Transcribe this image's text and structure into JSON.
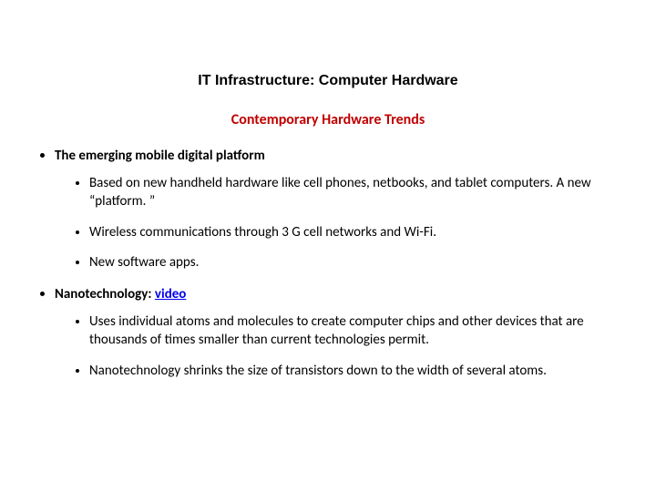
{
  "title": {
    "text": "IT Infrastructure: Computer Hardware",
    "color": "#000000",
    "fontsize": 16
  },
  "subtitle": {
    "text": "Contemporary Hardware Trends",
    "color": "#c00000",
    "fontsize": 16
  },
  "bullets": [
    {
      "heading": "The emerging mobile digital platform",
      "sub": [
        "Based on new handheld hardware like cell phones, netbooks, and tablet computers. A new “platform. ”",
        "Wireless communications through 3 G cell networks and Wi-Fi.",
        "New software apps."
      ]
    },
    {
      "heading_prefix": "Nanotechnology: ",
      "heading_link": "video",
      "sub": [
        "Uses individual atoms and molecules to create computer chips and other devices that are thousands of times smaller than current technologies permit.",
        "Nanotechnology shrinks the size of transistors down to the width of several atoms."
      ]
    }
  ]
}
